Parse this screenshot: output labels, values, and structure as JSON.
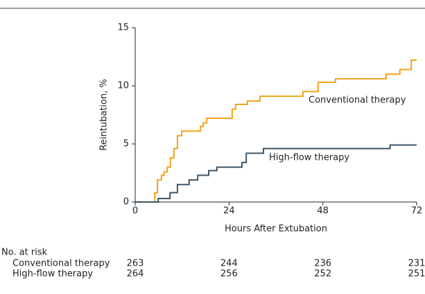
{
  "chart_data": {
    "type": "step",
    "xlabel": "Hours After Extubation",
    "ylabel": "Reintubation, %",
    "xlim": [
      0,
      72
    ],
    "xticks": [
      0,
      24,
      48,
      72
    ],
    "ylim": [
      0,
      15
    ],
    "yticks": [
      0,
      5,
      10,
      15
    ],
    "series": [
      {
        "name": "Conventional therapy",
        "color": "#f0a31a",
        "x": [
          0,
          5.0,
          5.7,
          6.7,
          7.4,
          8.2,
          9.0,
          9.9,
          10.8,
          11.9,
          16.7,
          17.4,
          18.3,
          24.8,
          25.7,
          28.7,
          31.9,
          42.9,
          46.8,
          51.2,
          64.2,
          67.7,
          70.6,
          72
        ],
        "values": [
          0,
          0.8,
          1.9,
          2.3,
          2.6,
          3.0,
          3.8,
          4.6,
          5.7,
          6.1,
          6.5,
          6.8,
          7.2,
          8.0,
          8.4,
          8.7,
          9.1,
          9.5,
          10.3,
          10.6,
          11.0,
          11.4,
          12.2,
          12.2
        ]
      },
      {
        "name": "High-flow therapy",
        "color": "#3d5568",
        "x": [
          0,
          5.9,
          8.9,
          10.8,
          13.8,
          16.0,
          18.8,
          20.9,
          27.3,
          28.4,
          32.8,
          65.2,
          72
        ],
        "values": [
          0,
          0.3,
          0.8,
          1.5,
          1.9,
          2.3,
          2.7,
          3.0,
          3.4,
          4.2,
          4.6,
          4.9,
          4.9
        ]
      }
    ],
    "risk_table": {
      "title": "No. at risk",
      "rows": [
        {
          "name": "Conventional therapy",
          "values": [
            263,
            244,
            236,
            231
          ]
        },
        {
          "name": "High-flow therapy",
          "values": [
            264,
            256,
            252,
            251
          ]
        }
      ]
    }
  }
}
